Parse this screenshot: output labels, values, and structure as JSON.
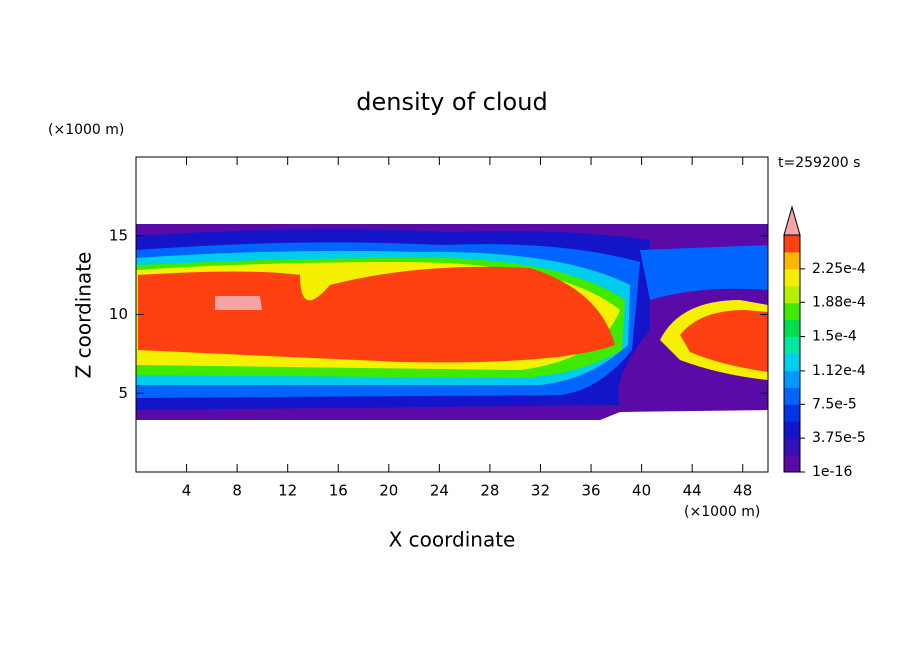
{
  "chart_data": {
    "type": "contour",
    "title": "density of cloud",
    "xlabel": "X coordinate",
    "ylabel": "Z coordinate",
    "x_unit": "(×1000 m)",
    "y_unit": "(×1000 m)",
    "annotation": "t=259200 s",
    "xlim": [
      0,
      50
    ],
    "ylim": [
      0,
      20
    ],
    "xticks": [
      4,
      8,
      12,
      16,
      20,
      24,
      28,
      32,
      36,
      40,
      44,
      48
    ],
    "yticks": [
      5,
      10,
      15
    ],
    "colorbar": {
      "clim": [
        1e-16,
        0.0002625
      ],
      "ticks": [
        1e-16,
        {
          "value": 3.75e-05,
          "label": "3.75e-5"
        },
        {
          "value": 7.5e-05,
          "label": "7.5e-5"
        },
        {
          "value": 0.000112,
          "label": "1.12e-4"
        },
        {
          "value": 0.00015,
          "label": "1.5e-4"
        },
        {
          "value": 0.000188,
          "label": "1.88e-4"
        },
        {
          "value": 0.000225,
          "label": "2.25e-4"
        }
      ],
      "colors": [
        "#5a0aa6",
        "#3410b4",
        "#1414c8",
        "#0034e6",
        "#0064ff",
        "#0098ff",
        "#00ccec",
        "#00e6a0",
        "#00de50",
        "#40ea00",
        "#b4f000",
        "#f4f000",
        "#ffb400",
        "#ff4010"
      ],
      "extend_color": "#f4a4a4"
    }
  }
}
